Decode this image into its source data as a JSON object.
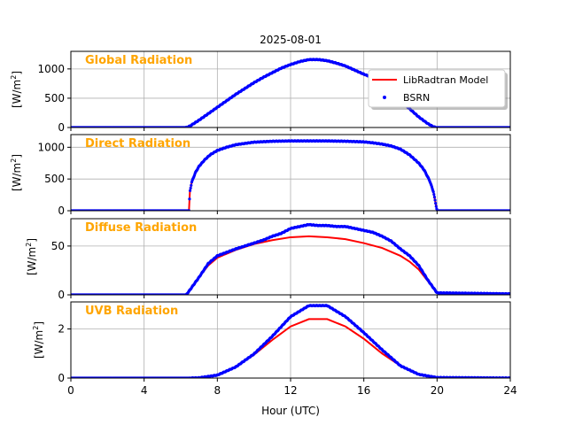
{
  "chart_data": {
    "type": "line",
    "title": "2025-08-01",
    "xlabel": "Hour (UTC)",
    "xlim": [
      0,
      24
    ],
    "xticks": [
      0,
      4,
      8,
      12,
      16,
      20,
      24
    ],
    "grid": true,
    "legend": {
      "placement": "top-right of first panel",
      "entries": [
        {
          "label": "LibRadtran Model",
          "color": "#ff0000",
          "style": "line"
        },
        {
          "label": "BSRN",
          "color": "#0000ff",
          "style": "dots"
        }
      ]
    },
    "panels": [
      {
        "label": "Global Radiation",
        "ylabel_prefix": "[W/m",
        "ylabel_sup": "2",
        "ylabel_suffix": "]",
        "ylim": [
          0,
          1300
        ],
        "yticks": [
          0,
          500,
          1000
        ],
        "series": [
          {
            "name": "LibRadtran Model",
            "color": "#ff0000",
            "x": [
              0,
              6.3,
              6.5,
              7,
              7.5,
              8,
              8.5,
              9,
              9.5,
              10,
              10.5,
              11,
              11.5,
              12,
              12.5,
              13,
              13.5,
              14,
              14.5,
              15,
              15.5,
              16,
              16.5,
              17,
              17.5,
              18,
              18.5,
              19,
              19.5,
              19.8,
              20,
              24
            ],
            "y": [
              0,
              0,
              20,
              120,
              230,
              340,
              450,
              560,
              660,
              760,
              850,
              930,
              1010,
              1070,
              1120,
              1150,
              1150,
              1130,
              1090,
              1040,
              970,
              900,
              840,
              720,
              590,
              450,
              310,
              170,
              60,
              10,
              0,
              0
            ]
          },
          {
            "name": "BSRN",
            "color": "#0000ff",
            "x": [
              0,
              6.3,
              6.5,
              7,
              7.5,
              8,
              8.5,
              9,
              9.5,
              10,
              10.5,
              11,
              11.5,
              12,
              12.5,
              13,
              13.5,
              14,
              14.5,
              15,
              15.5,
              16,
              16.5,
              17,
              17.5,
              18,
              18.5,
              19,
              19.5,
              19.8,
              20,
              24
            ],
            "y": [
              0,
              0,
              25,
              125,
              235,
              345,
              455,
              565,
              665,
              765,
              855,
              935,
              1015,
              1075,
              1125,
              1160,
              1160,
              1140,
              1100,
              1050,
              980,
              910,
              850,
              730,
              600,
              460,
              320,
              180,
              65,
              12,
              0,
              0
            ]
          }
        ]
      },
      {
        "label": "Direct Radiation",
        "ylabel_prefix": "[W/m",
        "ylabel_sup": "2",
        "ylabel_suffix": "]",
        "ylim": [
          0,
          1200
        ],
        "yticks": [
          0,
          500,
          1000
        ],
        "series": [
          {
            "name": "LibRadtran Model",
            "color": "#ff0000",
            "x": [
              0,
              6.45,
              6.5,
              6.6,
              6.8,
              7,
              7.3,
              7.6,
              8,
              8.5,
              9,
              10,
              11,
              12,
              13,
              14,
              15,
              16,
              16.5,
              17,
              17.5,
              18,
              18.5,
              19,
              19.3,
              19.6,
              19.8,
              19.9,
              20,
              24
            ],
            "y": [
              0,
              0,
              300,
              450,
              600,
              700,
              800,
              880,
              950,
              1000,
              1040,
              1080,
              1095,
              1100,
              1100,
              1100,
              1095,
              1085,
              1070,
              1050,
              1020,
              970,
              880,
              750,
              640,
              470,
              300,
              150,
              0,
              0
            ]
          },
          {
            "name": "BSRN",
            "color": "#0000ff",
            "x": [
              0,
              6.45,
              6.5,
              6.6,
              6.8,
              7,
              7.3,
              7.6,
              8,
              8.5,
              9,
              10,
              11,
              12,
              13,
              14,
              15,
              16,
              16.5,
              17,
              17.5,
              18,
              18.5,
              19,
              19.3,
              19.6,
              19.8,
              19.9,
              20,
              24
            ],
            "y": [
              0,
              0,
              300,
              450,
              600,
              700,
              800,
              880,
              950,
              1000,
              1040,
              1080,
              1095,
              1100,
              1100,
              1100,
              1095,
              1085,
              1070,
              1050,
              1020,
              970,
              880,
              750,
              640,
              470,
              300,
              150,
              0,
              0
            ]
          }
        ]
      },
      {
        "label": "Diffuse Radiation",
        "ylabel_prefix": "[W/m",
        "ylabel_sup": "2",
        "ylabel_suffix": "]",
        "ylim": [
          0,
          78
        ],
        "yticks": [
          0,
          50
        ],
        "series": [
          {
            "name": "LibRadtran Model",
            "color": "#ff0000",
            "x": [
              0,
              6.3,
              6.5,
              7,
              7.5,
              8,
              9,
              10,
              11,
              12,
              13,
              14,
              15,
              16,
              17,
              18,
              18.5,
              19,
              19.5,
              20,
              24
            ],
            "y": [
              0,
              0,
              5,
              18,
              30,
              38,
              46,
              52,
              56,
              59,
              60,
              59,
              57,
              53,
              48,
              40,
              34,
              26,
              14,
              2,
              0
            ]
          },
          {
            "name": "BSRN",
            "color": "#0000ff",
            "x": [
              0,
              6.3,
              6.5,
              7,
              7.5,
              8,
              9,
              10,
              10.5,
              11,
              11.5,
              12,
              12.5,
              13,
              13.5,
              14,
              14.5,
              15,
              15.5,
              16,
              16.5,
              17,
              17.5,
              18,
              18.5,
              19,
              19.5,
              20,
              24
            ],
            "y": [
              0,
              0,
              5,
              18,
              32,
              40,
              47,
              53,
              56,
              60,
              63,
              68,
              70,
              72,
              71,
              71,
              70,
              70,
              68,
              66,
              64,
              60,
              55,
              47,
              40,
              30,
              15,
              2,
              1
            ]
          }
        ]
      },
      {
        "label": "UVB Radiation",
        "ylabel_prefix": "[W/m",
        "ylabel_sup": "2",
        "ylabel_suffix": "]",
        "ylim": [
          0,
          3.1
        ],
        "yticks": [
          0,
          2
        ],
        "series": [
          {
            "name": "LibRadtran Model",
            "color": "#ff0000",
            "x": [
              0,
              6.5,
              7,
              8,
              9,
              10,
              11,
              12,
              13,
              14,
              15,
              16,
              17,
              18,
              19,
              20,
              24
            ],
            "y": [
              0,
              0,
              0.01,
              0.12,
              0.45,
              0.95,
              1.55,
              2.1,
              2.4,
              2.4,
              2.1,
              1.6,
              1.0,
              0.5,
              0.15,
              0.02,
              0
            ]
          },
          {
            "name": "BSRN",
            "color": "#0000ff",
            "x": [
              0,
              6.5,
              7,
              8,
              9,
              10,
              11,
              12,
              13,
              14,
              15,
              16,
              17,
              18,
              19,
              20,
              24
            ],
            "y": [
              0,
              0,
              0.01,
              0.12,
              0.45,
              0.98,
              1.7,
              2.5,
              2.95,
              2.95,
              2.5,
              1.85,
              1.15,
              0.5,
              0.15,
              0.02,
              0
            ]
          }
        ]
      }
    ]
  }
}
